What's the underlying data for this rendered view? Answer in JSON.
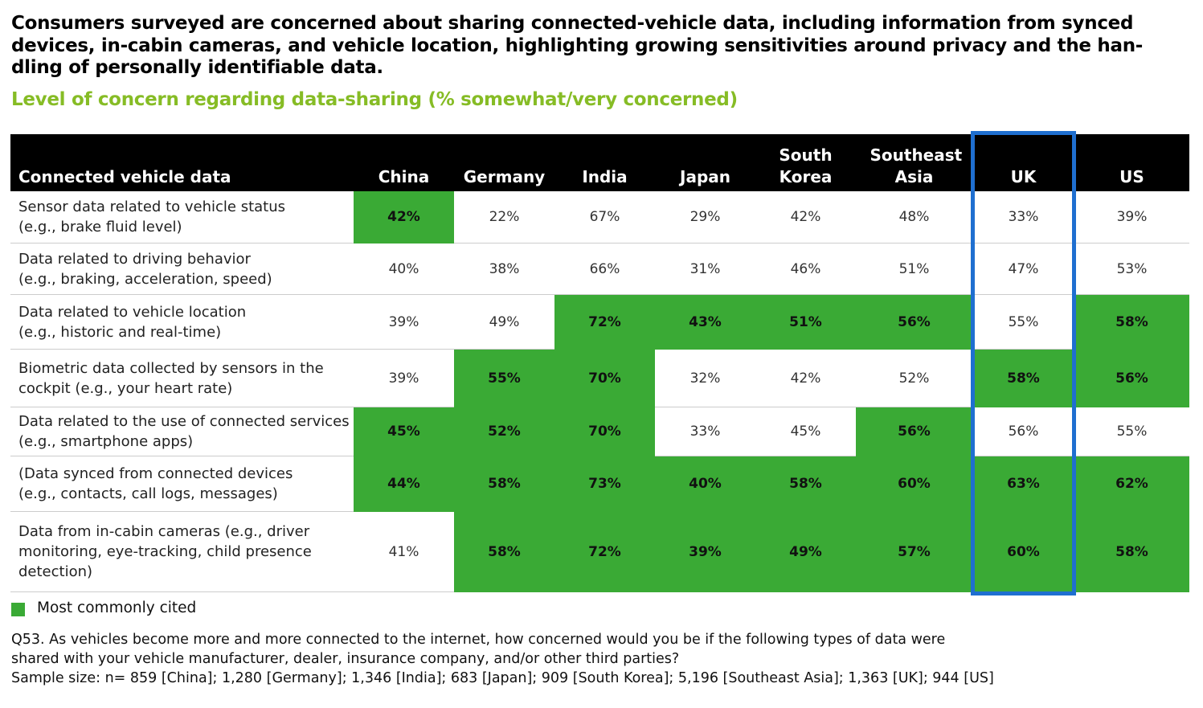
{
  "header": {
    "title": [
      "Consumers surveyed are concerned about sharing connected-vehicle data, including information from synced",
      "devices, in-cabin cameras, and vehicle location, highlighting growing sensitivities around privacy and the han-",
      "dling of personally identifiable data."
    ],
    "subtitle": "Level of concern regarding data-sharing (% somewhat/very concerned)"
  },
  "table": {
    "columns": [
      "Connected vehicle data",
      "China",
      "Germany",
      "India",
      "Japan",
      "South Korea",
      "Southeast Asia",
      "UK",
      "US"
    ],
    "highlight_color": "#3aaa35",
    "emphasized_column": 6,
    "emphasis_color": "#1f6fd0",
    "rows": [
      {
        "label": [
          "Sensor data related to vehicle status",
          "(e.g., brake fluid level)"
        ],
        "cells": [
          "42%",
          "22%",
          "67%",
          "29%",
          "42%",
          "48%",
          "33%",
          "39%"
        ],
        "highlight": [
          true,
          false,
          false,
          false,
          false,
          false,
          false,
          false
        ]
      },
      {
        "label": [
          "Data related to driving behavior",
          "(e.g., braking, acceleration, speed)"
        ],
        "cells": [
          "40%",
          "38%",
          "66%",
          "31%",
          "46%",
          "51%",
          "47%",
          "53%"
        ],
        "highlight": [
          false,
          false,
          false,
          false,
          false,
          false,
          false,
          false
        ]
      },
      {
        "label": [
          "Data related to vehicle location",
          "(e.g., historic and real-time)"
        ],
        "cells": [
          "39%",
          "49%",
          "72%",
          "43%",
          "51%",
          "56%",
          "55%",
          "58%"
        ],
        "highlight": [
          false,
          false,
          true,
          true,
          true,
          true,
          false,
          true
        ]
      },
      {
        "label": [
          "Biometric data collected by sensors in the",
          "cockpit (e.g., your heart rate)"
        ],
        "cells": [
          "39%",
          "55%",
          "70%",
          "32%",
          "42%",
          "52%",
          "58%",
          "56%"
        ],
        "highlight": [
          false,
          true,
          true,
          false,
          false,
          false,
          true,
          true
        ]
      },
      {
        "label": [
          "Data related to the use of connected services",
          "(e.g., smartphone apps)"
        ],
        "cells": [
          "45%",
          "52%",
          "70%",
          "33%",
          "45%",
          "56%",
          "56%",
          "55%"
        ],
        "highlight": [
          true,
          true,
          true,
          false,
          false,
          true,
          false,
          false
        ]
      },
      {
        "label": [
          "(Data synced from connected devices",
          "(e.g., contacts, call logs, messages)"
        ],
        "cells": [
          "44%",
          "58%",
          "73%",
          "40%",
          "58%",
          "60%",
          "63%",
          "62%"
        ],
        "highlight": [
          true,
          true,
          true,
          true,
          true,
          true,
          true,
          true
        ]
      },
      {
        "label": [
          "Data from in-cabin cameras (e.g., driver",
          "monitoring, eye-tracking, child presence",
          "detection)"
        ],
        "cells": [
          "41%",
          "58%",
          "72%",
          "39%",
          "49%",
          "57%",
          "60%",
          "58%"
        ],
        "highlight": [
          false,
          true,
          true,
          true,
          true,
          true,
          true,
          true
        ]
      }
    ]
  },
  "legend": "Most commonly cited",
  "notes": [
    "Q53. As vehicles become more and more connected to the internet, how concerned would you be if the following types of data were",
    "shared with your vehicle manufacturer, dealer, insurance company, and/or other third parties?",
    "Sample size: n= 859 [China]; 1,280 [Germany]; 1,346 [India]; 683 [Japan]; 909 [South Korea]; 5,196 [Southeast Asia]; 1,363 [UK]; 944 [US]"
  ]
}
